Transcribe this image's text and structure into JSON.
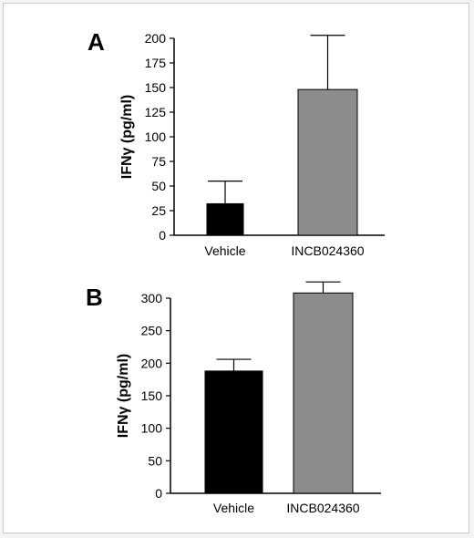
{
  "chart_data": [
    {
      "panel": "A",
      "type": "bar",
      "categories": [
        "Vehicle",
        "INCB024360"
      ],
      "values": [
        32,
        148
      ],
      "errors": [
        23,
        55
      ],
      "colors": [
        "#000000",
        "#8c8c8c"
      ],
      "ylabel": "IFNγ (pg/ml)",
      "ylim": [
        0,
        200
      ],
      "yticks": [
        0,
        25,
        50,
        75,
        100,
        125,
        150,
        175,
        200
      ],
      "grid": false
    },
    {
      "panel": "B",
      "type": "bar",
      "categories": [
        "Vehicle",
        "INCB024360"
      ],
      "values": [
        188,
        308
      ],
      "errors": [
        18,
        17
      ],
      "colors": [
        "#000000",
        "#8c8c8c"
      ],
      "ylabel": "IFNγ (pg/ml)",
      "ylim": [
        0,
        300
      ],
      "yticks": [
        0,
        50,
        100,
        150,
        200,
        250,
        300
      ],
      "grid": false
    }
  ]
}
